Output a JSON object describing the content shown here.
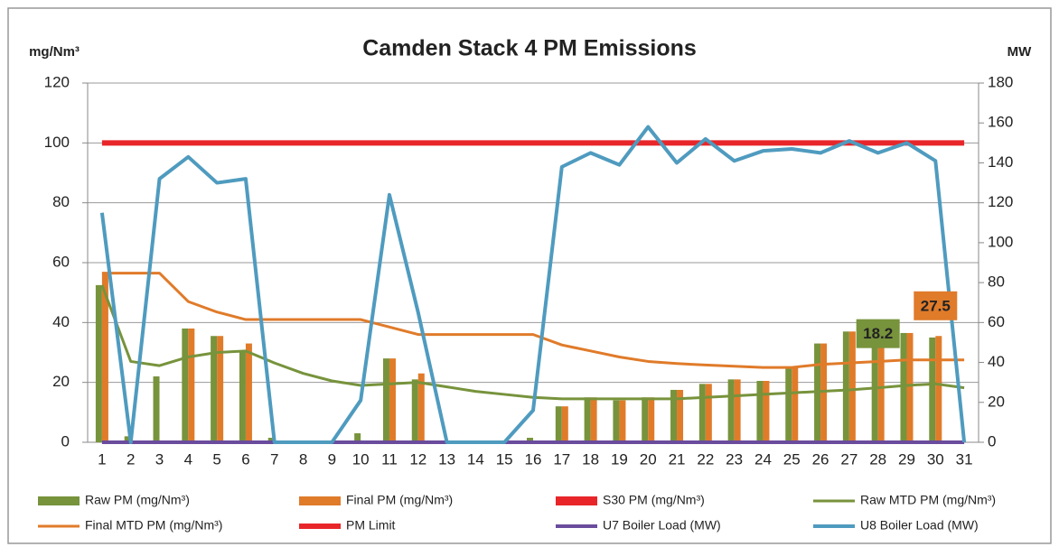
{
  "chart_data": {
    "type": "combo",
    "title": "Camden Stack 4 PM Emissions",
    "ylabel": "mg/Nm³",
    "y2label": "MW",
    "categories": [
      "1",
      "2",
      "3",
      "4",
      "5",
      "6",
      "7",
      "8",
      "9",
      "10",
      "11",
      "12",
      "13",
      "14",
      "15",
      "16",
      "17",
      "18",
      "19",
      "20",
      "21",
      "22",
      "23",
      "24",
      "25",
      "26",
      "27",
      "28",
      "29",
      "30",
      "31"
    ],
    "ylim": [
      0,
      120
    ],
    "yticks": [
      0,
      20,
      40,
      60,
      80,
      100,
      120
    ],
    "y2lim": [
      0,
      180
    ],
    "y2ticks": [
      0,
      20,
      40,
      60,
      80,
      100,
      120,
      140,
      160,
      180
    ],
    "grid": true,
    "legend": "bottom",
    "series": [
      {
        "name": "Raw PM (mg/Nm³)",
        "type": "bar",
        "color": "#77933c",
        "values": [
          52.5,
          2,
          22,
          38,
          35.5,
          30,
          1.5,
          0,
          0,
          3,
          28,
          21,
          0,
          0,
          0,
          1.5,
          12,
          15,
          14,
          15,
          17.5,
          19.5,
          21,
          20.5,
          25,
          33,
          37,
          33,
          36.5,
          35,
          0
        ]
      },
      {
        "name": "Final PM (mg/Nm³)",
        "type": "bar",
        "color": "#e07b2a",
        "values": [
          56.5,
          0,
          0,
          38,
          35.5,
          33,
          0,
          0,
          0,
          0,
          28,
          23,
          0,
          0,
          0,
          0,
          12,
          15,
          14,
          15,
          17.5,
          19.5,
          21,
          20.5,
          25,
          33,
          37,
          33,
          36.5,
          35.5,
          0
        ]
      },
      {
        "name": "S30 PM (mg/Nm³)",
        "type": "bar",
        "color": "#e8262a",
        "values": [
          null,
          null,
          null,
          null,
          null,
          null,
          null,
          null,
          null,
          null,
          null,
          null,
          null,
          null,
          null,
          null,
          null,
          null,
          null,
          null,
          null,
          null,
          null,
          null,
          null,
          null,
          null,
          null,
          null,
          null,
          null
        ]
      },
      {
        "name": "Raw MTD PM (mg/Nm³)",
        "type": "line",
        "color": "#77933c",
        "width": 3,
        "values": [
          52.5,
          27,
          25.6,
          28.5,
          30,
          30.5,
          26.5,
          23,
          20.5,
          19,
          19.5,
          20,
          18.5,
          17,
          16,
          15,
          14.5,
          14.5,
          14.5,
          14.5,
          14.5,
          15,
          15.5,
          16,
          16.5,
          17,
          17.5,
          18.2,
          19,
          19.5,
          18.2
        ],
        "value_labels": [
          null,
          null,
          null,
          null,
          null,
          null,
          null,
          null,
          null,
          null,
          null,
          null,
          null,
          null,
          null,
          null,
          null,
          null,
          null,
          null,
          null,
          null,
          null,
          null,
          null,
          null,
          null,
          "18.2",
          null,
          null,
          null
        ]
      },
      {
        "name": "Final MTD PM (mg/Nm³)",
        "type": "line",
        "color": "#e07b2a",
        "width": 3,
        "values": [
          56.5,
          56.5,
          56.5,
          47,
          43.5,
          41,
          41,
          41,
          41,
          41,
          38.5,
          36,
          36,
          36,
          36,
          36,
          32.5,
          30.5,
          28.5,
          27,
          26.3,
          25.8,
          25.4,
          25,
          25,
          26,
          26.5,
          27,
          27.5,
          27.5,
          27.5
        ],
        "value_labels": [
          null,
          null,
          null,
          null,
          null,
          null,
          null,
          null,
          null,
          null,
          null,
          null,
          null,
          null,
          null,
          null,
          null,
          null,
          null,
          null,
          null,
          null,
          null,
          null,
          null,
          null,
          null,
          null,
          null,
          "27.5",
          null
        ]
      },
      {
        "name": "PM Limit",
        "type": "line",
        "color": "#e8262a",
        "width": 6,
        "values": [
          100,
          100,
          100,
          100,
          100,
          100,
          100,
          100,
          100,
          100,
          100,
          100,
          100,
          100,
          100,
          100,
          100,
          100,
          100,
          100,
          100,
          100,
          100,
          100,
          100,
          100,
          100,
          100,
          100,
          100,
          100
        ]
      },
      {
        "name": "U7 Boiler Load (MW)",
        "type": "line",
        "axis": "y2",
        "color": "#6a4c9c",
        "width": 4,
        "values": [
          0,
          0,
          0,
          0,
          0,
          0,
          0,
          0,
          0,
          0,
          0,
          0,
          0,
          0,
          0,
          0,
          0,
          0,
          0,
          0,
          0,
          0,
          0,
          0,
          0,
          0,
          0,
          0,
          0,
          0,
          0
        ]
      },
      {
        "name": "U8 Boiler Load (MW)",
        "type": "line",
        "axis": "y2",
        "color": "#4f9bbf",
        "width": 4,
        "values": [
          115,
          0,
          132,
          143,
          130,
          132,
          0,
          0,
          0,
          21,
          124,
          65,
          0,
          0,
          0,
          16,
          138,
          145,
          139,
          158,
          140,
          152,
          141,
          146,
          147,
          145,
          151,
          145,
          150,
          141,
          0
        ]
      }
    ]
  }
}
